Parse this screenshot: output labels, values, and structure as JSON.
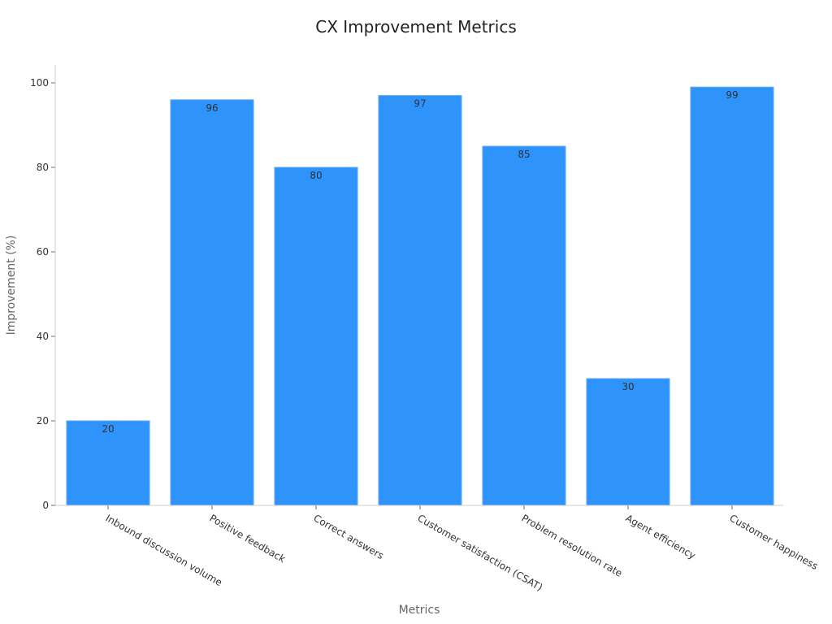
{
  "chart_data": {
    "type": "bar",
    "title": "CX Improvement Metrics",
    "xlabel": "Metrics",
    "ylabel": "Improvement (%)",
    "categories": [
      "Inbound discussion volume",
      "Positive feedback",
      "Correct answers",
      "Customer satisfaction (CSAT)",
      "Problem resolution rate",
      "Agent efficiency",
      "Customer happiness"
    ],
    "values": [
      20,
      96,
      80,
      97,
      85,
      30,
      99
    ],
    "ylim": [
      0,
      104
    ],
    "yticks": [
      0,
      20,
      40,
      60,
      80,
      100
    ],
    "grid": false,
    "legend": "none",
    "colors": {
      "bar": "#2e93fa",
      "bar_edge": "#5aaaf5"
    }
  }
}
